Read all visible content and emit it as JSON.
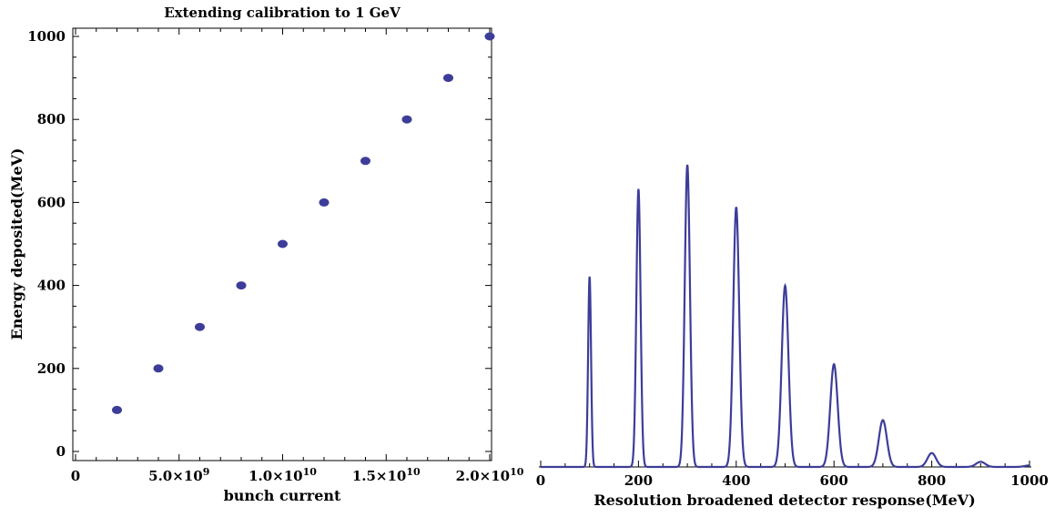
{
  "chart_data": [
    {
      "type": "scatter",
      "title": "Extending calibration to 1 GeV",
      "xlabel": "bunch current",
      "ylabel": "Energy deposited(MeV)",
      "xlim": [
        0,
        20000000000
      ],
      "ylim": [
        0,
        1000
      ],
      "x_ticks": [
        {
          "value": 0,
          "label": "0"
        },
        {
          "value": 5000000000,
          "label": "5.0×10",
          "exp": "9"
        },
        {
          "value": 10000000000,
          "label": "1.0×10",
          "exp": "10"
        },
        {
          "value": 15000000000,
          "label": "1.5×10",
          "exp": "10"
        },
        {
          "value": 20000000000,
          "label": "2.0×10",
          "exp": "10"
        }
      ],
      "y_ticks": [
        {
          "value": 0,
          "label": "0"
        },
        {
          "value": 200,
          "label": "200"
        },
        {
          "value": 400,
          "label": "400"
        },
        {
          "value": 600,
          "label": "600"
        },
        {
          "value": 800,
          "label": "800"
        },
        {
          "value": 1000,
          "label": "1000"
        }
      ],
      "grid": false,
      "marker_color": "#3d3d99",
      "points": [
        {
          "x": 2000000000,
          "y": 100
        },
        {
          "x": 4000000000,
          "y": 200
        },
        {
          "x": 6000000000,
          "y": 300
        },
        {
          "x": 8000000000,
          "y": 400
        },
        {
          "x": 10000000000,
          "y": 500
        },
        {
          "x": 12000000000,
          "y": 600
        },
        {
          "x": 14000000000,
          "y": 700
        },
        {
          "x": 16000000000,
          "y": 800
        },
        {
          "x": 18000000000,
          "y": 900
        },
        {
          "x": 20000000000,
          "y": 1000
        }
      ]
    },
    {
      "type": "line",
      "title": "",
      "xlabel": "Resolution broadened detector response(MeV)",
      "ylabel": "",
      "xlim": [
        0,
        1000
      ],
      "x_ticks": [
        {
          "value": 0,
          "label": "0"
        },
        {
          "value": 200,
          "label": "200"
        },
        {
          "value": 400,
          "label": "400"
        },
        {
          "value": 600,
          "label": "600"
        },
        {
          "value": 800,
          "label": "800"
        },
        {
          "value": 1000,
          "label": "1000"
        }
      ],
      "y_axis_shown": false,
      "grid": false,
      "line_color": "#3d3d99",
      "peaks": [
        {
          "center": 100,
          "height": 0.63,
          "sigma": 3.0
        },
        {
          "center": 200,
          "height": 0.92,
          "sigma": 4.3
        },
        {
          "center": 300,
          "height": 1.0,
          "sigma": 5.3
        },
        {
          "center": 400,
          "height": 0.86,
          "sigma": 6.1
        },
        {
          "center": 500,
          "height": 0.6,
          "sigma": 6.9
        },
        {
          "center": 600,
          "height": 0.34,
          "sigma": 7.6
        },
        {
          "center": 700,
          "height": 0.155,
          "sigma": 8.2
        },
        {
          "center": 800,
          "height": 0.046,
          "sigma": 8.8
        },
        {
          "center": 900,
          "height": 0.017,
          "sigma": 9.4
        },
        {
          "center": 1000,
          "height": 0.005,
          "sigma": 10.0
        }
      ]
    }
  ]
}
